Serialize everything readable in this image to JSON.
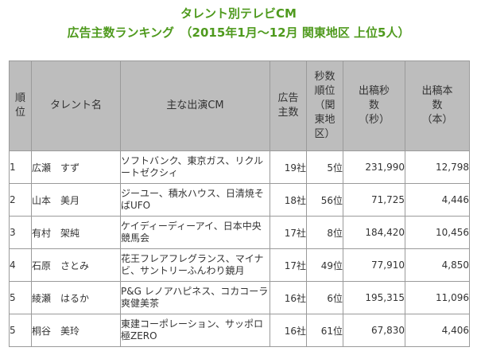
{
  "title": {
    "line1": "タレント別テレビCM",
    "line2": "広告主数ランキング　（2015年1月～12月 関東地区 上位5人）"
  },
  "table": {
    "headers": {
      "rank": "順\n位",
      "talent": "タレント名",
      "cm": "主な出演CM",
      "advertisers": "広告\n主数",
      "seconds_rank": "秒数\n順位\n（関\n東地\n区）",
      "seconds": "出稿秒\n数\n（秒）",
      "count": "出稿本\n数\n（本）"
    },
    "rows": [
      {
        "rank": "1",
        "talent": "広瀬　すず",
        "cm": "ソフトバンク、東京ガス、リクルートゼクシィ",
        "advertisers": "19社",
        "seconds_rank": "5位",
        "seconds": "231,990",
        "count": "12,798"
      },
      {
        "rank": "2",
        "talent": "山本　美月",
        "cm": "ジーユー、積水ハウス、日清焼そばUFO",
        "advertisers": "18社",
        "seconds_rank": "56位",
        "seconds": "71,725",
        "count": "4,446"
      },
      {
        "rank": "3",
        "talent": "有村　架純",
        "cm": "ケイディーディーアイ、日本中央競馬会",
        "advertisers": "17社",
        "seconds_rank": "8位",
        "seconds": "184,420",
        "count": "10,456"
      },
      {
        "rank": "4",
        "talent": "石原　さとみ",
        "cm": "花王フレアフレグランス、マイナビ、サントリーふんわり鏡月",
        "advertisers": "17社",
        "seconds_rank": "49位",
        "seconds": "77,910",
        "count": "4,850"
      },
      {
        "rank": "5",
        "talent": "綾瀬　はるか",
        "cm": "P&G レノアハピネス、コカコーラ爽健美茶",
        "advertisers": "16社",
        "seconds_rank": "6位",
        "seconds": "195,315",
        "count": "11,096"
      },
      {
        "rank": "5",
        "talent": "桐谷　美玲",
        "cm": "東建コーポレーション、サッポロ極ZERO",
        "advertisers": "16社",
        "seconds_rank": "61位",
        "seconds": "67,830",
        "count": "4,406"
      }
    ]
  }
}
